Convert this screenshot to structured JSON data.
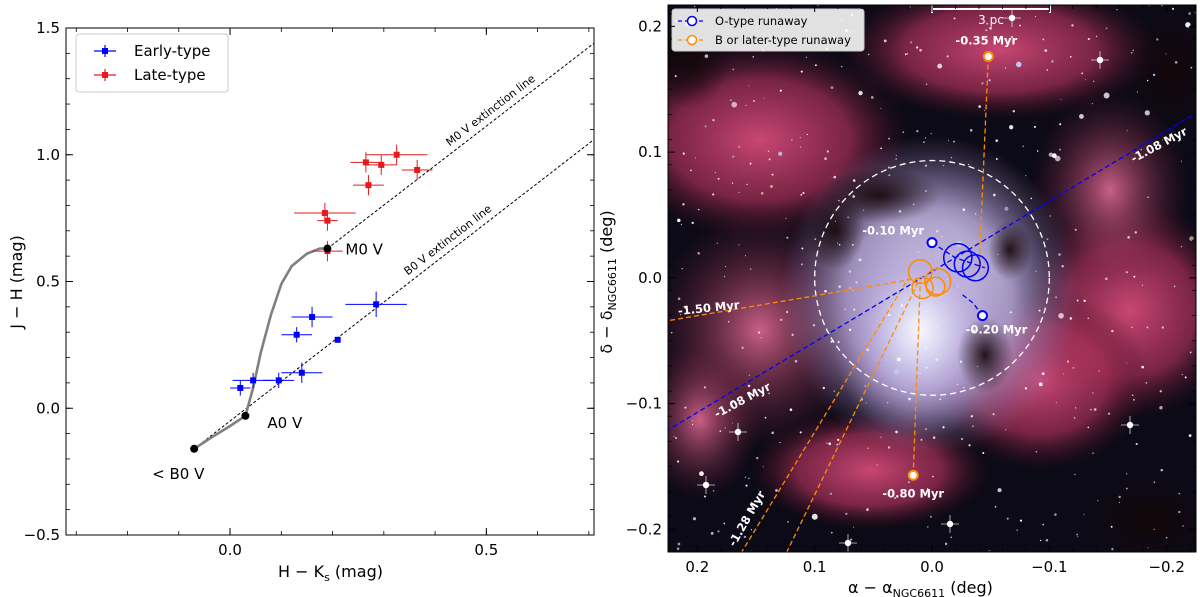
{
  "chart_data": [
    {
      "type": "scatter",
      "title": "",
      "xlabel": "H − K",
      "xlabel_sub": "s",
      "xlabel_unit": " (mag)",
      "ylabel": "J − H (mag)",
      "xlim": [
        -0.32,
        0.71
      ],
      "ylim": [
        -0.5,
        1.5
      ],
      "xticks": [
        0.0,
        0.5
      ],
      "xtick_labels": [
        "0.0",
        "0.5"
      ],
      "yticks": [
        -0.5,
        0.0,
        0.5,
        1.0,
        1.5
      ],
      "ytick_labels": [
        "−0.5",
        "0.0",
        "0.5",
        "1.0",
        "1.5"
      ],
      "legend": {
        "position": "top-left",
        "entries": [
          "Early-type",
          "Late-type"
        ]
      },
      "series": [
        {
          "name": "Early-type",
          "color": "#0000ff",
          "points": [
            {
              "x": 0.02,
              "y": 0.08,
              "xerr": 0.02,
              "yerr": 0.03
            },
            {
              "x": 0.045,
              "y": 0.11,
              "xerr": 0.04,
              "yerr": 0.03
            },
            {
              "x": 0.095,
              "y": 0.11,
              "xerr": 0.03,
              "yerr": 0.03
            },
            {
              "x": 0.14,
              "y": 0.14,
              "xerr": 0.04,
              "yerr": 0.04
            },
            {
              "x": 0.13,
              "y": 0.29,
              "xerr": 0.03,
              "yerr": 0.03
            },
            {
              "x": 0.16,
              "y": 0.36,
              "xerr": 0.04,
              "yerr": 0.04
            },
            {
              "x": 0.21,
              "y": 0.27,
              "xerr": 0.0,
              "yerr": 0.0
            },
            {
              "x": 0.285,
              "y": 0.41,
              "xerr": 0.06,
              "yerr": 0.05
            }
          ]
        },
        {
          "name": "Late-type",
          "color": "#e41a1c",
          "points": [
            {
              "x": 0.185,
              "y": 0.77,
              "xerr": 0.06,
              "yerr": 0.04
            },
            {
              "x": 0.19,
              "y": 0.74,
              "xerr": 0.02,
              "yerr": 0.04
            },
            {
              "x": 0.19,
              "y": 0.62,
              "xerr": 0.03,
              "yerr": 0.04
            },
            {
              "x": 0.27,
              "y": 0.88,
              "xerr": 0.03,
              "yerr": 0.04
            },
            {
              "x": 0.265,
              "y": 0.97,
              "xerr": 0.03,
              "yerr": 0.04
            },
            {
              "x": 0.295,
              "y": 0.96,
              "xerr": 0.03,
              "yerr": 0.04
            },
            {
              "x": 0.325,
              "y": 1.0,
              "xerr": 0.06,
              "yerr": 0.04
            },
            {
              "x": 0.365,
              "y": 0.94,
              "xerr": 0.03,
              "yerr": 0.04
            }
          ]
        }
      ],
      "main_sequence": {
        "color": "#808080",
        "x": [
          -0.07,
          -0.04,
          0.0,
          0.03,
          0.045,
          0.06,
          0.08,
          0.1,
          0.12,
          0.15,
          0.175,
          0.19
        ],
        "y": [
          -0.16,
          -0.12,
          -0.07,
          -0.03,
          0.08,
          0.22,
          0.37,
          0.49,
          0.56,
          0.61,
          0.63,
          0.63
        ]
      },
      "reference_points": [
        {
          "label": "< B0 V",
          "x": -0.07,
          "y": -0.16
        },
        {
          "label": "A0 V",
          "x": 0.03,
          "y": -0.03
        },
        {
          "label": "M0 V",
          "x": 0.19,
          "y": 0.63
        }
      ],
      "extinction_lines": [
        {
          "label": "M0 V extinction line",
          "x": [
            0.19,
            0.71
          ],
          "y": [
            0.63,
            1.44
          ]
        },
        {
          "label": "B0 V extinction line",
          "x": [
            -0.07,
            0.71
          ],
          "y": [
            -0.16,
            1.06
          ]
        }
      ]
    },
    {
      "type": "image-overlay",
      "title": "",
      "xlabel": "α − α",
      "xlabel_sub": "NGC6611",
      "xlabel_unit": " (deg)",
      "ylabel": "δ − δ",
      "ylabel_sub": "NGC6611",
      "ylabel_unit": " (deg)",
      "xlim": [
        0.225,
        -0.225
      ],
      "ylim": [
        -0.218,
        0.217
      ],
      "xticks": [
        0.2,
        0.1,
        0.0,
        -0.1,
        -0.2
      ],
      "xtick_labels": [
        "0.2",
        "0.1",
        "0.0",
        "−0.1",
        "−0.2"
      ],
      "yticks": [
        -0.2,
        -0.1,
        0.0,
        0.1,
        0.2
      ],
      "ytick_labels": [
        "−0.2",
        "−0.1",
        "0.0",
        "0.1",
        "0.2"
      ],
      "legend": {
        "position": "top-left",
        "entries": [
          "O-type runaway",
          "B or later-type runaway"
        ]
      },
      "scale_bar": {
        "label": "3 pc"
      },
      "cluster_circle": {
        "x": 0.0,
        "y": 0.0,
        "r": 0.1
      },
      "o_type": {
        "color": "#0000ff",
        "stars": [
          {
            "x": 0.0,
            "y": 0.028,
            "time_label": "-0.10 Myr"
          },
          {
            "x": -0.043,
            "y": -0.03,
            "time_label": "-0.20 Myr"
          }
        ],
        "tracks": [
          {
            "x": [
              0.0,
              -0.02,
              -0.045
            ],
            "y": [
              0.028,
              0.016,
              0.008
            ]
          },
          {
            "x": [
              -0.043,
              -0.035,
              -0.024
            ],
            "y": [
              -0.03,
              -0.02,
              -0.012
            ]
          },
          {
            "x": [
              0.25,
              -0.25
            ],
            "y": [
              -0.135,
              0.145
            ]
          }
        ],
        "circles": [
          {
            "x": -0.022,
            "y": 0.016,
            "r": 0.012
          },
          {
            "x": -0.03,
            "y": 0.011,
            "r": 0.011
          },
          {
            "x": -0.037,
            "y": 0.008,
            "r": 0.011
          }
        ],
        "time_labels": [
          {
            "label": "-1.08 Myr",
            "x": -0.195,
            "y": 0.103,
            "rot": -28
          },
          {
            "label": "-1.08 Myr",
            "x": 0.16,
            "y": -0.1,
            "rot": -28
          }
        ]
      },
      "late_type": {
        "color": "#ff8c00",
        "stars": [
          {
            "x": -0.048,
            "y": 0.176,
            "time_label": "-0.35 Myr"
          },
          {
            "x": 0.016,
            "y": -0.157,
            "time_label": "-0.80 Myr"
          }
        ],
        "tracks": [
          {
            "x": [
              -0.048,
              -0.04
            ],
            "y": [
              0.176,
              0.005
            ]
          },
          {
            "x": [
              0.016,
              0.01
            ],
            "y": [
              -0.157,
              -0.003
            ]
          },
          {
            "x": [
              0.25,
              0.01
            ],
            "y": [
              -0.038,
              0.0
            ]
          },
          {
            "x": [
              0.17,
              0.02
            ],
            "y": [
              -0.23,
              0.0
            ]
          },
          {
            "x": [
              0.13,
              0.01
            ],
            "y": [
              -0.23,
              0.0
            ]
          }
        ],
        "circles": [
          {
            "x": 0.01,
            "y": 0.005,
            "r": 0.01
          },
          {
            "x": -0.005,
            "y": -0.003,
            "r": 0.011
          },
          {
            "x": 0.008,
            "y": -0.008,
            "r": 0.009
          },
          {
            "x": -0.003,
            "y": -0.007,
            "r": 0.008
          }
        ],
        "time_labels": [
          {
            "label": "-1.50 Myr",
            "x": 0.19,
            "y": -0.027,
            "rot": -6
          },
          {
            "label": "-1.28 Myr",
            "x": 0.155,
            "y": -0.193,
            "rot": -60
          }
        ]
      }
    }
  ],
  "colors": {
    "early": "#0000ff",
    "late": "#e41a1c",
    "ms_track": "#808080",
    "o_runaway": "#0000ff",
    "late_runaway": "#ff8c00"
  }
}
